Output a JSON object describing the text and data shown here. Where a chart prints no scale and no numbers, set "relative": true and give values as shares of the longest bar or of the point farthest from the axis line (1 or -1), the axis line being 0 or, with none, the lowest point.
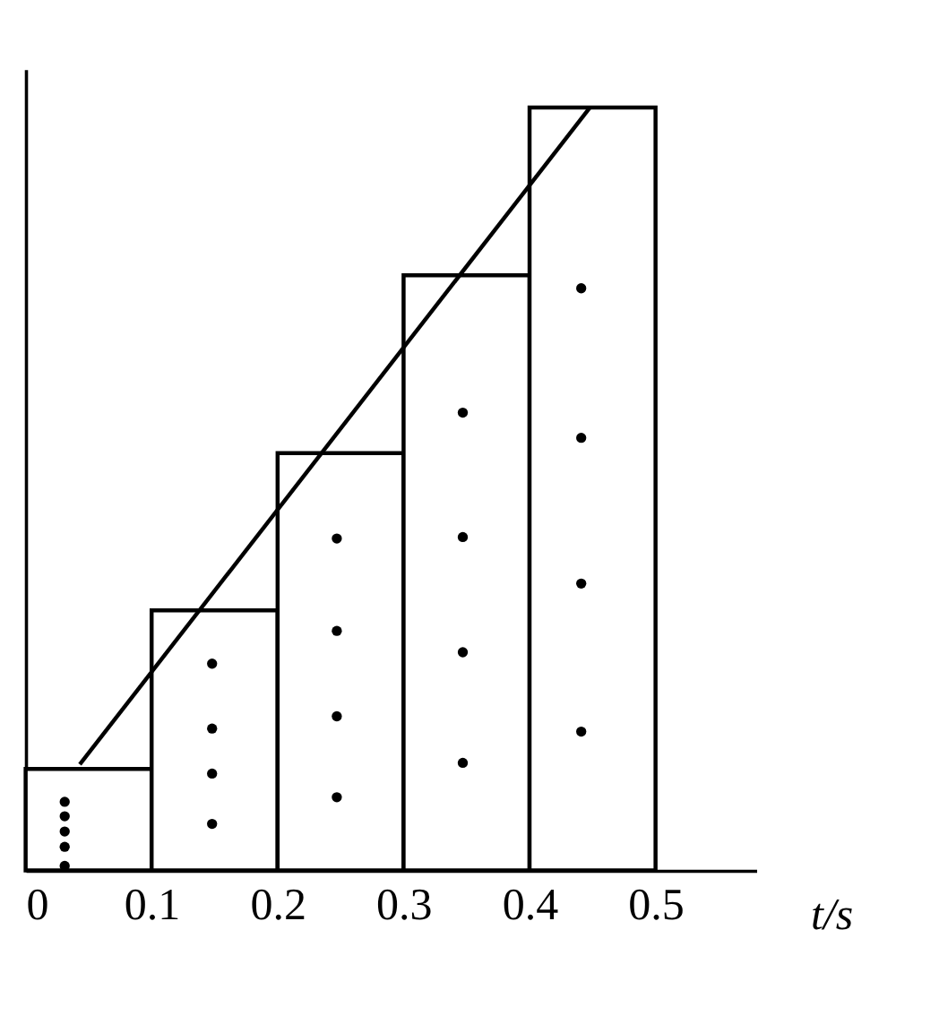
{
  "chart_data": {
    "type": "bar",
    "relative": true,
    "xlabel": "t/s",
    "xlim": [
      0,
      0.58
    ],
    "xticks": [
      0,
      0.1,
      0.2,
      0.3,
      0.4,
      0.5
    ],
    "grid": false,
    "tick_labels": "x",
    "series": [
      {
        "color": "#000000",
        "x": [
          0.05,
          0.15,
          0.25,
          0.35,
          0.45
        ],
        "values": [
          0.133,
          0.341,
          0.547,
          0.78,
          1
        ]
      },
      {
        "type": "line",
        "color": "#000000",
        "x": [
          0.043,
          0.448
        ],
        "values": [
          0.139,
          1
        ]
      },
      {
        "type": "scatter",
        "color": "#000000",
        "marker": "circle",
        "x": [
          0.031,
          0.031,
          0.031,
          0.031,
          0.031,
          0.148,
          0.148,
          0.148,
          0.148,
          0.247,
          0.247,
          0.247,
          0.247,
          0.347,
          0.347,
          0.347,
          0.347,
          0.441,
          0.441,
          0.441,
          0.441
        ],
        "values": [
          0.09,
          0.071,
          0.051,
          0.031,
          0.006,
          0.271,
          0.186,
          0.127,
          0.061,
          0.435,
          0.314,
          0.202,
          0.096,
          0.6,
          0.437,
          0.286,
          0.141,
          0.763,
          0.567,
          0.376,
          0.182
        ]
      }
    ]
  }
}
